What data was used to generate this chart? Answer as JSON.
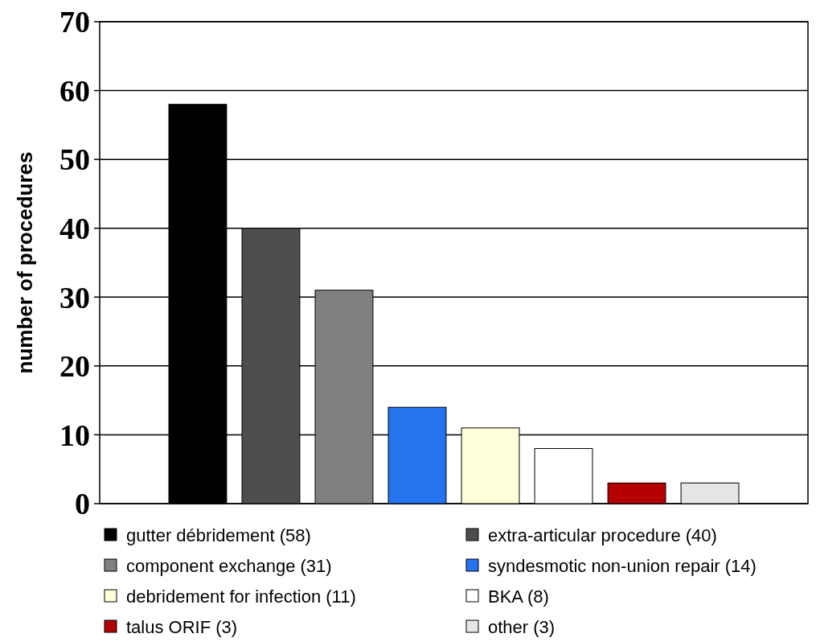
{
  "chart_data": {
    "type": "bar",
    "ylabel": "number of procedures",
    "categories": [
      null,
      null,
      null,
      null,
      null,
      null,
      null,
      null
    ],
    "series": [
      {
        "name": "gutter débridement (58)",
        "color": "#000000",
        "values": [
          58,
          null,
          null,
          null,
          null,
          null,
          null,
          null
        ]
      },
      {
        "name": "extra-articular procedure (40)",
        "color": "#4d4d4d",
        "values": [
          null,
          40,
          null,
          null,
          null,
          null,
          null,
          null
        ]
      },
      {
        "name": "component exchange (31)",
        "color": "#808080",
        "values": [
          null,
          null,
          31,
          null,
          null,
          null,
          null,
          null
        ]
      },
      {
        "name": "syndesmotic non-union repair (14)",
        "color": "#2673f0",
        "values": [
          null,
          null,
          null,
          14,
          null,
          null,
          null,
          null
        ]
      },
      {
        "name": "debridement for infection (11)",
        "color": "#ffffd9",
        "values": [
          null,
          null,
          null,
          null,
          11,
          null,
          null,
          null
        ]
      },
      {
        "name": "BKA (8)",
        "color": "#ffffff",
        "values": [
          null,
          null,
          null,
          null,
          null,
          8,
          null,
          null
        ]
      },
      {
        "name": "talus ORIF (3)",
        "color": "#b30000",
        "values": [
          null,
          null,
          null,
          null,
          null,
          null,
          3,
          null
        ]
      },
      {
        "name": "other (3)",
        "color": "#e6e6e6",
        "values": [
          null,
          null,
          null,
          null,
          null,
          null,
          null,
          3
        ]
      }
    ],
    "stacked": true,
    "ylim": [
      0,
      70
    ],
    "yticks": [
      0,
      10,
      20,
      30,
      40,
      50,
      60,
      70
    ],
    "grid": "y",
    "legend": "bottom"
  }
}
